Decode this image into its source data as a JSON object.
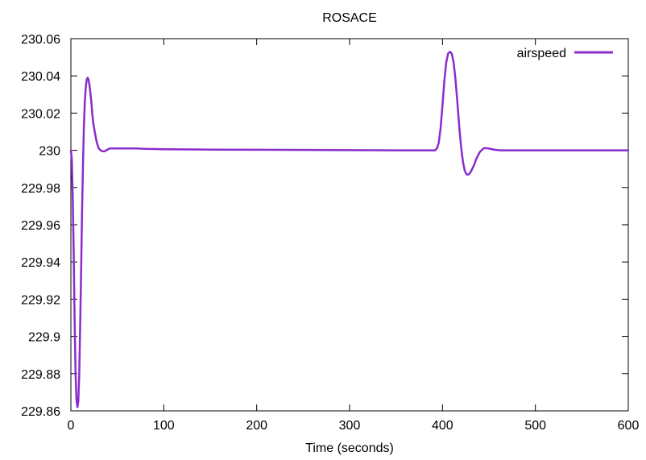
{
  "chart_data": {
    "type": "line",
    "title": "ROSACE",
    "xlabel": "Time (seconds)",
    "ylabel": "",
    "xlim": [
      0,
      600
    ],
    "ylim": [
      229.86,
      230.06
    ],
    "xticks": [
      0,
      100,
      200,
      300,
      400,
      500,
      600
    ],
    "xtick_labels": [
      "0",
      "100",
      "200",
      "300",
      "400",
      "500",
      "600"
    ],
    "yticks": [
      229.86,
      229.88,
      229.9,
      229.92,
      229.94,
      229.96,
      229.98,
      230,
      230.02,
      230.04,
      230.06
    ],
    "ytick_labels": [
      "229.86",
      "229.88",
      "229.9",
      "229.92",
      "229.94",
      "229.96",
      "229.98",
      "230",
      "230.02",
      "230.04",
      "230.06"
    ],
    "grid": false,
    "legend": {
      "position": "top-right"
    },
    "series": [
      {
        "name": "airspeed",
        "color": "#8b2ccc",
        "x": [
          0,
          1,
          2,
          3,
          4,
          5,
          6,
          7,
          8,
          9,
          10,
          11,
          12,
          13,
          14,
          15,
          16,
          17,
          18,
          19,
          20,
          21,
          22,
          23,
          24,
          26,
          28,
          30,
          32,
          34,
          36,
          38,
          40,
          42,
          44,
          46,
          48,
          50,
          55,
          60,
          70,
          80,
          100,
          150,
          200,
          250,
          300,
          350,
          380,
          390,
          392,
          394,
          396,
          398,
          400,
          402,
          404,
          406,
          408,
          410,
          412,
          414,
          416,
          418,
          420,
          422,
          424,
          426,
          428,
          430,
          432,
          434,
          436,
          438,
          440,
          442,
          444,
          446,
          448,
          450,
          452,
          454,
          456,
          458,
          460,
          462,
          464,
          466,
          468,
          470,
          475,
          480,
          490,
          500,
          550,
          600
        ],
        "y": [
          230.0,
          229.995,
          229.975,
          229.945,
          229.91,
          229.88,
          229.866,
          229.862,
          229.865,
          229.88,
          229.905,
          229.935,
          229.965,
          229.992,
          230.012,
          230.026,
          230.034,
          230.038,
          230.039,
          230.038,
          230.035,
          230.031,
          230.026,
          230.02,
          230.015,
          230.009,
          230.004,
          230.001,
          230.0,
          229.9995,
          229.9995,
          230.0,
          230.0005,
          230.001,
          230.001,
          230.001,
          230.001,
          230.001,
          230.001,
          230.001,
          230.001,
          230.0008,
          230.0006,
          230.0004,
          230.0003,
          230.0002,
          230.0001,
          230.0,
          230.0,
          230.0,
          230.0,
          230.001,
          230.004,
          230.012,
          230.024,
          230.037,
          230.047,
          230.052,
          230.053,
          230.052,
          230.047,
          230.038,
          230.026,
          230.013,
          230.002,
          229.994,
          229.989,
          229.987,
          229.987,
          229.988,
          229.99,
          229.992,
          229.995,
          229.997,
          229.999,
          230.0,
          230.001,
          230.0012,
          230.0011,
          230.001,
          230.0007,
          230.0005,
          230.0003,
          230.0002,
          230.0001,
          230.0,
          230.0,
          230.0,
          230.0,
          230.0,
          230.0,
          230.0,
          230.0,
          230.0,
          230.0,
          230.0
        ]
      }
    ]
  }
}
